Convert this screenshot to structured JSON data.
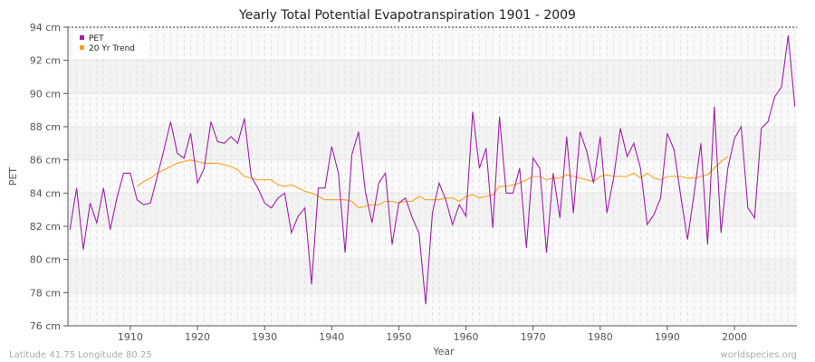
{
  "chart_data": {
    "type": "line",
    "title": "Yearly Total Potential Evapotranspiration 1901 - 2009",
    "xlabel": "Year",
    "ylabel": "PET",
    "ylim": [
      76,
      94
    ],
    "xlim": [
      1901,
      2009
    ],
    "yticks": [
      76,
      78,
      80,
      82,
      84,
      86,
      88,
      90,
      92,
      94
    ],
    "ytick_labels": [
      "76 cm",
      "78 cm",
      "80 cm",
      "82 cm",
      "84 cm",
      "86 cm",
      "88 cm",
      "90 cm",
      "92 cm",
      "94 cm"
    ],
    "xticks": [
      1910,
      1920,
      1930,
      1940,
      1950,
      1960,
      1970,
      1980,
      1990,
      2000
    ],
    "xtick_labels": [
      "1910",
      "1920",
      "1930",
      "1940",
      "1950",
      "1960",
      "1970",
      "1980",
      "1990",
      "2000"
    ],
    "grid": true,
    "legend_position": "top-left",
    "series": [
      {
        "name": "PET",
        "color": "#a020a8",
        "x_start": 1901,
        "values": [
          81.8,
          84.3,
          80.6,
          83.4,
          82.2,
          84.3,
          81.8,
          83.7,
          85.2,
          85.2,
          83.6,
          83.3,
          83.4,
          85.0,
          86.6,
          88.3,
          86.4,
          86.1,
          87.6,
          84.6,
          85.5,
          88.3,
          87.1,
          87.0,
          87.4,
          87.0,
          88.5,
          85.0,
          84.3,
          83.4,
          83.1,
          83.7,
          84.0,
          81.6,
          82.6,
          83.1,
          78.5,
          84.3,
          84.3,
          86.8,
          85.2,
          80.4,
          86.3,
          87.7,
          84.1,
          82.2,
          84.6,
          85.2,
          80.9,
          83.4,
          83.7,
          82.5,
          81.6,
          77.3,
          82.8,
          84.6,
          83.6,
          82.1,
          83.3,
          82.6,
          88.9,
          85.5,
          86.7,
          81.9,
          88.6,
          84.0,
          84.0,
          85.5,
          80.7,
          86.1,
          85.5,
          80.4,
          85.2,
          82.5,
          87.4,
          82.8,
          87.7,
          86.5,
          84.6,
          87.4,
          82.8,
          84.9,
          87.9,
          86.2,
          87.0,
          85.5,
          82.1,
          82.7,
          83.7,
          87.6,
          86.6,
          83.8,
          81.2,
          84.0,
          87.0,
          80.9,
          89.2,
          81.6,
          85.5,
          87.3,
          88.0,
          83.1,
          82.5,
          87.9,
          88.3,
          89.8,
          90.4,
          93.5,
          89.2
        ]
      },
      {
        "name": "20 Yr Trend",
        "color": "#ffa020",
        "x_start": 1911,
        "values": [
          84.4,
          84.7,
          84.9,
          85.2,
          85.4,
          85.6,
          85.8,
          85.9,
          86.0,
          85.9,
          85.8,
          85.8,
          85.8,
          85.7,
          85.6,
          85.4,
          85.0,
          84.9,
          84.8,
          84.8,
          84.8,
          84.5,
          84.4,
          84.5,
          84.3,
          84.1,
          84.0,
          83.8,
          83.6,
          83.6,
          83.6,
          83.6,
          83.5,
          83.1,
          83.2,
          83.3,
          83.3,
          83.5,
          83.5,
          83.4,
          83.5,
          83.5,
          83.8,
          83.6,
          83.6,
          83.6,
          83.7,
          83.7,
          83.5,
          83.8,
          83.9,
          83.7,
          83.8,
          83.9,
          84.4,
          84.4,
          84.5,
          84.6,
          84.8,
          85.0,
          85.0,
          84.8,
          84.9,
          84.9,
          85.1,
          85.0,
          84.9,
          84.8,
          84.7,
          85.0,
          85.1,
          85.0,
          85.0,
          85.0,
          85.2,
          84.9,
          85.2,
          84.9,
          84.8,
          85.0,
          85.0,
          85.0,
          84.9,
          84.9,
          85.0,
          85.1,
          85.5,
          85.9,
          86.2
        ]
      }
    ]
  },
  "footer": {
    "location": "Latitude 41.75 Longitude 80.25",
    "source": "worldspecies.org"
  }
}
